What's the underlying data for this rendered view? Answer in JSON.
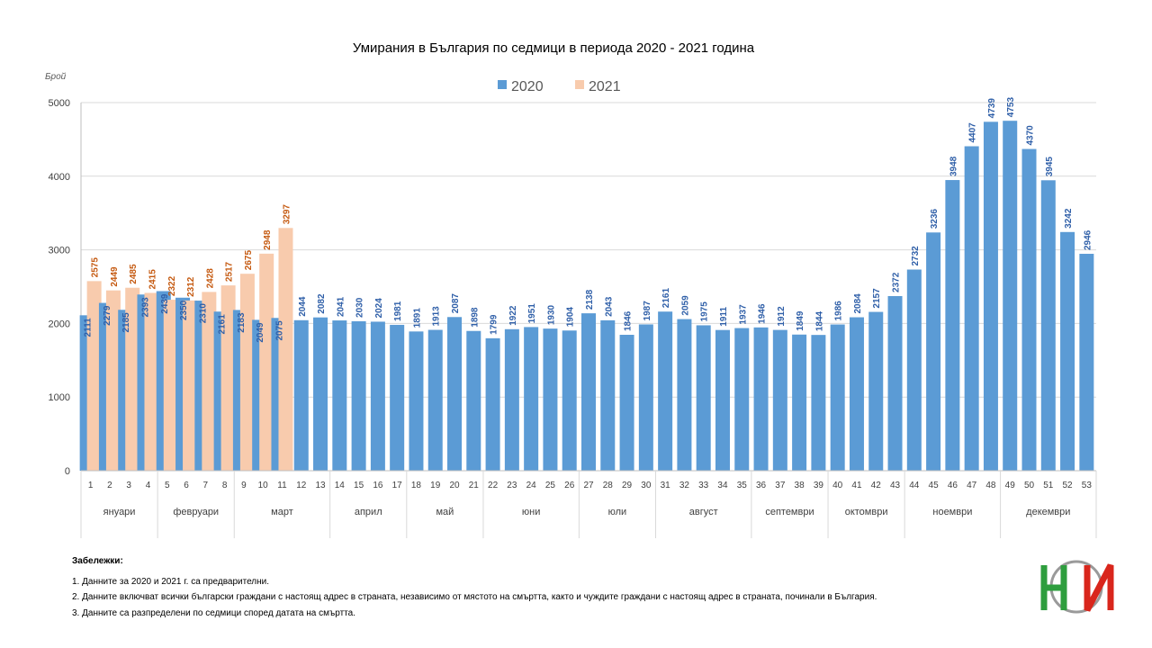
{
  "chart_data": {
    "type": "bar",
    "title": "Умирания в България по седмици в периода 2020 - 2021 година",
    "y_label": "Брой",
    "ylim": [
      0,
      5000
    ],
    "yticks": [
      0,
      1000,
      2000,
      3000,
      4000,
      5000
    ],
    "grid": true,
    "legend": "top",
    "categories": [
      "1",
      "2",
      "3",
      "4",
      "5",
      "6",
      "7",
      "8",
      "9",
      "10",
      "11",
      "12",
      "13",
      "14",
      "15",
      "16",
      "17",
      "18",
      "19",
      "20",
      "21",
      "22",
      "23",
      "24",
      "25",
      "26",
      "27",
      "28",
      "29",
      "30",
      "31",
      "32",
      "33",
      "34",
      "35",
      "36",
      "37",
      "38",
      "39",
      "40",
      "41",
      "42",
      "43",
      "44",
      "45",
      "46",
      "47",
      "48",
      "49",
      "50",
      "51",
      "52",
      "53"
    ],
    "groups": [
      {
        "label": "януари",
        "first": "1",
        "last": "4"
      },
      {
        "label": "февруари",
        "first": "5",
        "last": "8"
      },
      {
        "label": "март",
        "first": "9",
        "last": "13"
      },
      {
        "label": "април",
        "first": "14",
        "last": "17"
      },
      {
        "label": "май",
        "first": "18",
        "last": "21"
      },
      {
        "label": "юни",
        "first": "22",
        "last": "26"
      },
      {
        "label": "юли",
        "first": "27",
        "last": "30"
      },
      {
        "label": "август",
        "first": "31",
        "last": "35"
      },
      {
        "label": "септември",
        "first": "36",
        "last": "39"
      },
      {
        "label": "октомври",
        "first": "40",
        "last": "43"
      },
      {
        "label": "ноември",
        "first": "44",
        "last": "48"
      },
      {
        "label": "декември",
        "first": "49",
        "last": "53"
      }
    ],
    "series": [
      {
        "name": "2020",
        "color": "#5b9bd5",
        "label_color": "#2f5fa8",
        "values": [
          2111,
          2279,
          2185,
          2393,
          2439,
          2350,
          2310,
          2161,
          2183,
          2049,
          2075,
          2044,
          2082,
          2041,
          2030,
          2024,
          1981,
          1891,
          1913,
          2087,
          1898,
          1799,
          1922,
          1951,
          1930,
          1904,
          2138,
          2043,
          1846,
          1987,
          2161,
          2059,
          1975,
          1911,
          1937,
          1946,
          1912,
          1849,
          1844,
          1986,
          2084,
          2157,
          2372,
          2732,
          3236,
          3948,
          4407,
          4739,
          4753,
          4370,
          3945,
          3242,
          2946
        ]
      },
      {
        "name": "2021",
        "color": "#f8cbad",
        "label_color": "#c55a11",
        "values": [
          2575,
          2449,
          2485,
          2415,
          2322,
          2312,
          2428,
          2517,
          2675,
          2948,
          3297,
          null,
          null,
          null,
          null,
          null,
          null,
          null,
          null,
          null,
          null,
          null,
          null,
          null,
          null,
          null,
          null,
          null,
          null,
          null,
          null,
          null,
          null,
          null,
          null,
          null,
          null,
          null,
          null,
          null,
          null,
          null,
          null,
          null,
          null,
          null,
          null,
          null,
          null,
          null,
          null,
          null,
          null
        ]
      }
    ]
  },
  "notes": {
    "title": "Забележки:",
    "items": [
      "1. Данните за 2020 и 2021 г. са предварителни.",
      "2. Данните включват всички български граждани с настоящ адрес в страната, независимо от мястото на смъртта, както и чуждите граждани с настоящ адрес в страната, починали в България.",
      "3. Данните са разпределени по седмици според  датата на смъртта."
    ]
  }
}
